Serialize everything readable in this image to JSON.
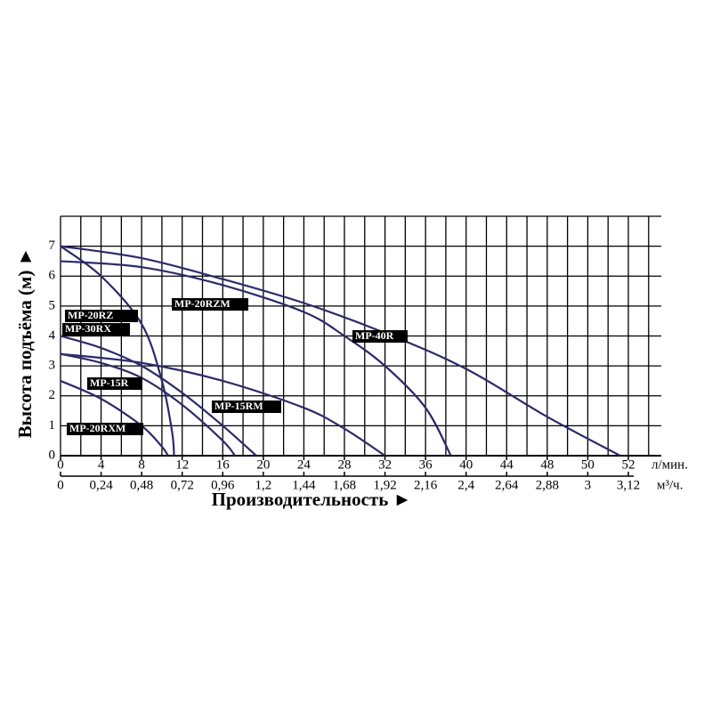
{
  "chart_data": {
    "type": "line",
    "x_label": "Производительность ►",
    "y_label": "Высота подъёма (м) ►",
    "x_unit": "л/мин.",
    "x2_unit": "м³/ч.",
    "ylim": [
      0,
      8
    ],
    "yticks": [
      0,
      1,
      2,
      3,
      4,
      5,
      6,
      7
    ],
    "xticks": [
      0,
      4,
      8,
      12,
      16,
      20,
      24,
      28,
      32,
      36,
      40,
      44,
      48,
      50,
      52
    ],
    "x2ticks": [
      0,
      {
        "value": 0.24,
        "label": "0,24"
      },
      {
        "value": 0.48,
        "label": "0,48"
      },
      {
        "value": 0.72,
        "label": "0,72"
      },
      {
        "value": 0.96,
        "label": "0,96"
      },
      {
        "value": 1.2,
        "label": "1,2"
      },
      {
        "value": 1.44,
        "label": "1,44"
      },
      {
        "value": 1.68,
        "label": "1,68"
      },
      {
        "value": 1.92,
        "label": "1,92"
      },
      {
        "value": 2.16,
        "label": "2,16"
      },
      {
        "value": 2.4,
        "label": "2,4"
      },
      {
        "value": 2.64,
        "label": "2,64"
      },
      {
        "value": 2.88,
        "label": "2,88"
      },
      3,
      {
        "value": 3.12,
        "label": "3,12"
      }
    ],
    "grid": true,
    "series": [
      {
        "name": "MP-20RZ",
        "color": "#2b2b6b",
        "x": [
          0,
          4,
          8,
          10,
          11,
          11.2
        ],
        "values": [
          7,
          6.0,
          4.4,
          2.5,
          0.8,
          0
        ]
      },
      {
        "name": "MP-30RX",
        "color": "#2b2b6b",
        "x": [
          0,
          4,
          8,
          12,
          16,
          19.3
        ],
        "values": [
          4,
          3.6,
          3.0,
          2.1,
          1.0,
          0
        ]
      },
      {
        "name": "MP-15R",
        "color": "#2b2b6b",
        "x": [
          0,
          4,
          8,
          12,
          16,
          17.2
        ],
        "values": [
          3.4,
          3.1,
          2.6,
          1.7,
          0.5,
          0
        ]
      },
      {
        "name": "MP-15RM",
        "color": "#2b2b6b",
        "x": [
          0,
          8,
          16,
          24,
          28,
          32
        ],
        "values": [
          3.4,
          3.1,
          2.5,
          1.6,
          0.9,
          0
        ]
      },
      {
        "name": "MP-20RXM",
        "color": "#2b2b6b",
        "x": [
          0,
          4,
          8,
          10,
          10.6
        ],
        "values": [
          2.5,
          1.9,
          1.0,
          0.3,
          0
        ]
      },
      {
        "name": "MP-20RZM",
        "color": "#2b2b6b",
        "x": [
          0,
          8,
          16,
          24,
          28,
          32,
          36,
          38.5
        ],
        "values": [
          6.5,
          6.3,
          5.7,
          4.8,
          4.0,
          3.0,
          1.6,
          0
        ]
      },
      {
        "name": "MP-40R",
        "color": "#2b2b6b",
        "x": [
          0,
          8,
          16,
          24,
          32,
          40,
          48,
          51.6
        ],
        "values": [
          7,
          6.6,
          5.9,
          5.1,
          4.1,
          2.9,
          1.3,
          0
        ]
      }
    ]
  }
}
